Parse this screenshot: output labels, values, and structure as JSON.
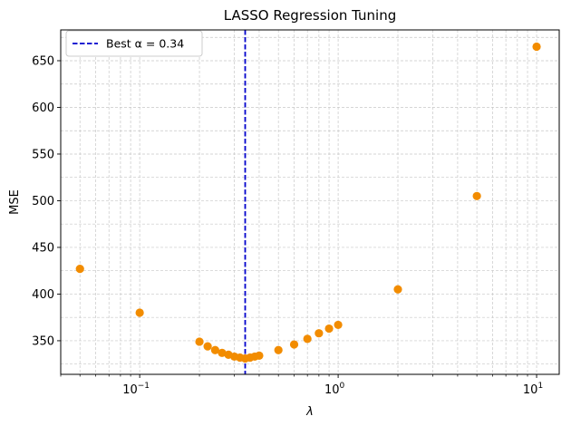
{
  "chart_data": {
    "type": "scatter",
    "title": "LASSO Regression Tuning",
    "xlabel": "λ",
    "ylabel": "MSE",
    "xscale": "log",
    "xlim": [
      0.04,
      13
    ],
    "ylim": [
      314,
      683
    ],
    "grid": "both (major and minor), dashed light gray",
    "x_ticks": [
      {
        "value": 0.1,
        "base": "10",
        "exp": "−1"
      },
      {
        "value": 1,
        "base": "10",
        "exp": "0"
      },
      {
        "value": 10,
        "base": "10",
        "exp": "1"
      }
    ],
    "y_ticks": [
      350,
      400,
      450,
      500,
      550,
      600,
      650
    ],
    "points_color": "#f28c00",
    "best_line": {
      "x": 0.34,
      "color": "#0000cc",
      "style": "dashed",
      "label": "Best α = 0.34"
    },
    "legend_position": "upper-left",
    "points": [
      {
        "x": 0.05,
        "y": 427
      },
      {
        "x": 0.1,
        "y": 380
      },
      {
        "x": 0.2,
        "y": 349
      },
      {
        "x": 0.22,
        "y": 344
      },
      {
        "x": 0.24,
        "y": 340
      },
      {
        "x": 0.26,
        "y": 337
      },
      {
        "x": 0.28,
        "y": 335
      },
      {
        "x": 0.3,
        "y": 333
      },
      {
        "x": 0.32,
        "y": 332
      },
      {
        "x": 0.34,
        "y": 331
      },
      {
        "x": 0.36,
        "y": 332
      },
      {
        "x": 0.38,
        "y": 333
      },
      {
        "x": 0.4,
        "y": 334
      },
      {
        "x": 0.5,
        "y": 340
      },
      {
        "x": 0.6,
        "y": 346
      },
      {
        "x": 0.7,
        "y": 352
      },
      {
        "x": 0.8,
        "y": 358
      },
      {
        "x": 0.9,
        "y": 363
      },
      {
        "x": 1.0,
        "y": 367
      },
      {
        "x": 2.0,
        "y": 405
      },
      {
        "x": 5.0,
        "y": 505
      },
      {
        "x": 10.0,
        "y": 665
      }
    ]
  }
}
